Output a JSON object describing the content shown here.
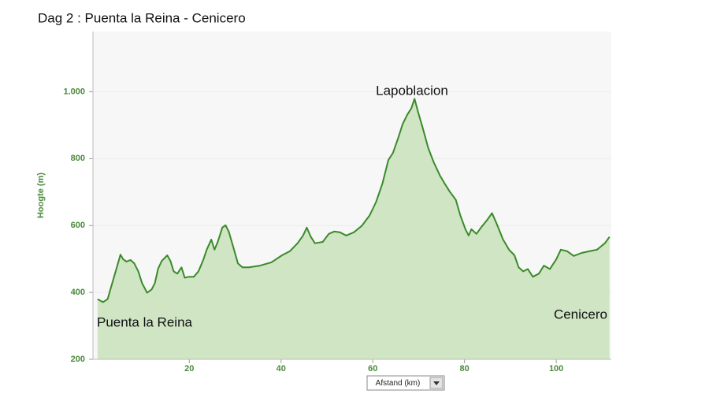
{
  "chart_data": {
    "type": "area",
    "title": "Dag 2 :  Puenta la Reina - Cenicero",
    "y_label": "Hoogte (m)",
    "x_label": "Afstand (km)",
    "annotations": [
      "Lapoblacion",
      "Puenta la Reina",
      "Cenicero"
    ],
    "color": "#3a8a2a",
    "fill": "#cfe5c3",
    "grid": true,
    "xlim": [
      -1,
      112
    ],
    "ylim": [
      200,
      1180
    ],
    "xticks": [
      20,
      40,
      60,
      80,
      100
    ],
    "yticks": [
      200,
      400,
      600,
      800,
      {
        "value": 1000,
        "label": "1.000"
      }
    ],
    "x": [
      0,
      1.2,
      2.2,
      3.2,
      4.3,
      5,
      5.6,
      6.3,
      7.2,
      8,
      8.9,
      9.7,
      10.8,
      11.8,
      12.5,
      13.2,
      14,
      15.2,
      15.9,
      16.6,
      17.4,
      18.3,
      19,
      20,
      21,
      22,
      23.1,
      23.8,
      24.8,
      25.5,
      26.2,
      27.2,
      27.9,
      28.6,
      29.6,
      30.6,
      31.6,
      33,
      35.4,
      37.9,
      40.2,
      41.9,
      43.6,
      44.8,
      45.6,
      46.5,
      47.4,
      49.1,
      50.4,
      51.6,
      52.8,
      54.2,
      55.9,
      57.6,
      59.3,
      60.7,
      62.1,
      63.4,
      64.4,
      65.5,
      66.5,
      67.5,
      68.4,
      69.1,
      69.9,
      70.9,
      72.1,
      73.3,
      74.7,
      75.7,
      76.8,
      78.1,
      79.1,
      80.2,
      80.9,
      81.5,
      82.6,
      83.6,
      85,
      86,
      87,
      88.4,
      89.7,
      90.9,
      91.8,
      92.8,
      93.8,
      94.9,
      96.2,
      97.3,
      98.6,
      100,
      101,
      102.4,
      103.8,
      105.5,
      107.2,
      108.9,
      110.6,
      111.6
    ],
    "values": [
      380,
      371,
      380,
      428,
      480,
      513,
      499,
      492,
      497,
      487,
      463,
      428,
      399,
      409,
      428,
      471,
      494,
      511,
      494,
      463,
      456,
      475,
      444,
      447,
      447,
      463,
      499,
      528,
      558,
      528,
      551,
      594,
      601,
      582,
      535,
      487,
      475,
      475,
      480,
      490,
      511,
      523,
      547,
      570,
      594,
      566,
      547,
      551,
      575,
      582,
      580,
      570,
      580,
      599,
      630,
      670,
      725,
      796,
      817,
      860,
      903,
      931,
      950,
      979,
      938,
      891,
      831,
      789,
      748,
      725,
      701,
      677,
      630,
      589,
      570,
      589,
      575,
      594,
      618,
      637,
      606,
      558,
      528,
      511,
      475,
      463,
      470,
      447,
      456,
      480,
      470,
      499,
      528,
      523,
      509,
      518,
      523,
      528,
      547,
      566
    ]
  }
}
